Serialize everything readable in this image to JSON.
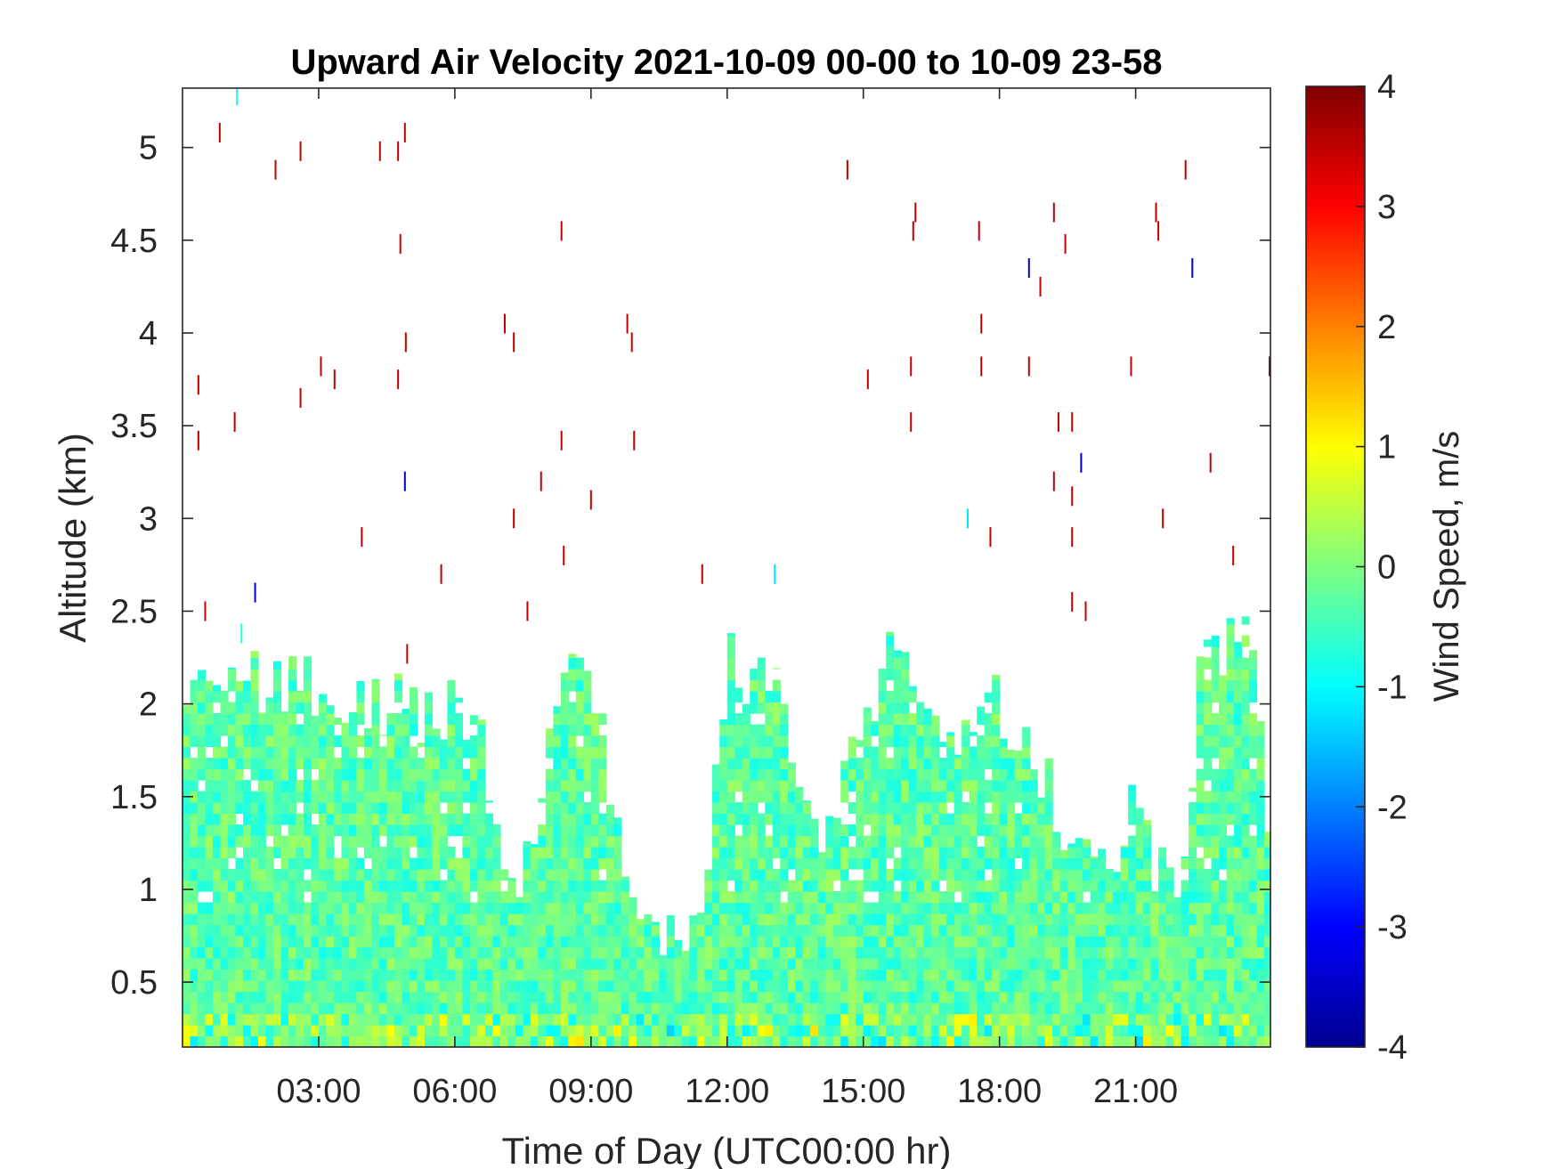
{
  "chart_data": {
    "type": "heatmap",
    "title": "Upward Air Velocity 2021-10-09 00-00 to 10-09 23-58",
    "xlabel": "Time of Day (UTC00:00 hr)",
    "ylabel": "Altitude (km)",
    "colorbar_label": "Wind Speed, m/s",
    "colormap": "jet",
    "xlim_hours": [
      0,
      23.97
    ],
    "ylim_km": [
      0.15,
      5.32
    ],
    "clim": [
      -4,
      4
    ],
    "x_ticks": [
      {
        "hour": 3,
        "label": "03:00"
      },
      {
        "hour": 6,
        "label": "06:00"
      },
      {
        "hour": 9,
        "label": "09:00"
      },
      {
        "hour": 12,
        "label": "12:00"
      },
      {
        "hour": 15,
        "label": "15:00"
      },
      {
        "hour": 18,
        "label": "18:00"
      },
      {
        "hour": 21,
        "label": "21:00"
      }
    ],
    "y_ticks": [
      {
        "km": 0.5,
        "label": "0.5"
      },
      {
        "km": 1,
        "label": "1"
      },
      {
        "km": 1.5,
        "label": "1.5"
      },
      {
        "km": 2,
        "label": "2"
      },
      {
        "km": 2.5,
        "label": "2.5"
      },
      {
        "km": 3,
        "label": "3"
      },
      {
        "km": 3.5,
        "label": "3.5"
      },
      {
        "km": 4,
        "label": "4"
      },
      {
        "km": 4.5,
        "label": "4.5"
      },
      {
        "km": 5,
        "label": "5"
      }
    ],
    "colorbar_ticks": [
      {
        "value": -4,
        "label": "-4"
      },
      {
        "value": -3,
        "label": "-3"
      },
      {
        "value": -2,
        "label": "-2"
      },
      {
        "value": -1,
        "label": "-1"
      },
      {
        "value": 0,
        "label": "0"
      },
      {
        "value": 1,
        "label": "1"
      },
      {
        "value": 2,
        "label": "2"
      },
      {
        "value": 3,
        "label": "3"
      },
      {
        "value": 4,
        "label": "4"
      }
    ],
    "data_ceiling_km": [
      [
        0.0,
        2.15
      ],
      [
        0.5,
        2.12
      ],
      [
        1.0,
        2.12
      ],
      [
        1.5,
        2.12
      ],
      [
        2.0,
        2.12
      ],
      [
        2.5,
        2.12
      ],
      [
        3.0,
        2.05
      ],
      [
        3.5,
        2.0
      ],
      [
        4.0,
        2.0
      ],
      [
        4.5,
        2.0
      ],
      [
        5.0,
        2.0
      ],
      [
        5.5,
        1.9
      ],
      [
        6.0,
        2.0
      ],
      [
        6.5,
        1.9
      ],
      [
        7.0,
        1.3
      ],
      [
        7.5,
        1.0
      ],
      [
        8.0,
        1.7
      ],
      [
        8.5,
        2.1
      ],
      [
        9.0,
        2.1
      ],
      [
        9.5,
        1.5
      ],
      [
        10.0,
        0.9
      ],
      [
        10.5,
        0.8
      ],
      [
        11.0,
        0.75
      ],
      [
        11.5,
        0.7
      ],
      [
        12.0,
        2.3
      ],
      [
        12.5,
        2.1
      ],
      [
        13.0,
        2.1
      ],
      [
        13.5,
        1.8
      ],
      [
        14.0,
        1.3
      ],
      [
        14.5,
        1.6
      ],
      [
        15.0,
        1.8
      ],
      [
        15.5,
        2.2
      ],
      [
        16.0,
        2.3
      ],
      [
        16.5,
        2.0
      ],
      [
        17.0,
        1.9
      ],
      [
        17.5,
        1.9
      ],
      [
        18.0,
        2.0
      ],
      [
        18.5,
        1.8
      ],
      [
        19.0,
        1.6
      ],
      [
        19.5,
        1.2
      ],
      [
        20.0,
        1.3
      ],
      [
        20.5,
        1.1
      ],
      [
        21.0,
        1.5
      ],
      [
        21.5,
        1.1
      ],
      [
        22.0,
        1.0
      ],
      [
        22.5,
        2.3
      ],
      [
        23.0,
        2.3
      ],
      [
        23.5,
        2.3
      ],
      [
        23.97,
        1.3
      ]
    ],
    "dominant_value_ms": -0.3,
    "isolated_returns": [
      {
        "hour": 0.35,
        "km": 3.72,
        "value": 3.5
      },
      {
        "hour": 0.35,
        "km": 3.42,
        "value": 3.5
      },
      {
        "hour": 0.5,
        "km": 2.5,
        "value": 3.5
      },
      {
        "hour": 0.82,
        "km": 5.08,
        "value": 3.5
      },
      {
        "hour": 1.15,
        "km": 3.52,
        "value": 3.5
      },
      {
        "hour": 1.2,
        "km": 5.28,
        "value": -0.8
      },
      {
        "hour": 1.6,
        "km": 2.6,
        "value": -3.5
      },
      {
        "hour": 1.3,
        "km": 2.38,
        "value": -0.8
      },
      {
        "hour": 2.05,
        "km": 4.88,
        "value": 3.5
      },
      {
        "hour": 2.6,
        "km": 4.98,
        "value": 3.5
      },
      {
        "hour": 2.6,
        "km": 3.65,
        "value": 3.5
      },
      {
        "hour": 3.05,
        "km": 3.82,
        "value": 3.5
      },
      {
        "hour": 3.35,
        "km": 3.75,
        "value": 3.5
      },
      {
        "hour": 3.95,
        "km": 2.9,
        "value": 3.5
      },
      {
        "hour": 4.35,
        "km": 4.98,
        "value": 3.5
      },
      {
        "hour": 4.75,
        "km": 4.98,
        "value": 3.5
      },
      {
        "hour": 4.75,
        "km": 3.75,
        "value": 3.5
      },
      {
        "hour": 4.8,
        "km": 4.48,
        "value": 3.5
      },
      {
        "hour": 4.9,
        "km": 5.08,
        "value": 3.5
      },
      {
        "hour": 4.92,
        "km": 3.95,
        "value": 3.5
      },
      {
        "hour": 4.9,
        "km": 3.2,
        "value": -3.5
      },
      {
        "hour": 4.95,
        "km": 2.27,
        "value": 3.5
      },
      {
        "hour": 5.7,
        "km": 2.7,
        "value": 3.5
      },
      {
        "hour": 7.1,
        "km": 4.05,
        "value": 3.5
      },
      {
        "hour": 7.3,
        "km": 3.95,
        "value": 3.5
      },
      {
        "hour": 7.3,
        "km": 3.0,
        "value": 3.5
      },
      {
        "hour": 7.6,
        "km": 2.5,
        "value": 3.5
      },
      {
        "hour": 7.9,
        "km": 3.2,
        "value": 3.5
      },
      {
        "hour": 8.35,
        "km": 4.55,
        "value": 3.5
      },
      {
        "hour": 8.35,
        "km": 3.42,
        "value": 3.5
      },
      {
        "hour": 8.4,
        "km": 2.8,
        "value": 3.5
      },
      {
        "hour": 9.0,
        "km": 3.1,
        "value": 3.5
      },
      {
        "hour": 9.8,
        "km": 4.05,
        "value": 3.5
      },
      {
        "hour": 9.9,
        "km": 3.95,
        "value": 3.5
      },
      {
        "hour": 9.95,
        "km": 3.42,
        "value": 3.5
      },
      {
        "hour": 11.45,
        "km": 2.7,
        "value": 3.5
      },
      {
        "hour": 13.05,
        "km": 2.7,
        "value": -1.2
      },
      {
        "hour": 14.65,
        "km": 4.88,
        "value": 3.5
      },
      {
        "hour": 15.1,
        "km": 3.75,
        "value": 3.5
      },
      {
        "hour": 16.05,
        "km": 3.82,
        "value": 3.5
      },
      {
        "hour": 16.05,
        "km": 3.52,
        "value": 3.5
      },
      {
        "hour": 16.1,
        "km": 4.55,
        "value": 3.5
      },
      {
        "hour": 16.15,
        "km": 4.65,
        "value": 3.5
      },
      {
        "hour": 17.55,
        "km": 4.55,
        "value": 3.5
      },
      {
        "hour": 17.6,
        "km": 4.05,
        "value": 3.5
      },
      {
        "hour": 17.6,
        "km": 3.82,
        "value": 3.5
      },
      {
        "hour": 17.8,
        "km": 2.9,
        "value": 3.5
      },
      {
        "hour": 17.3,
        "km": 3.0,
        "value": -1.2
      },
      {
        "hour": 18.65,
        "km": 4.35,
        "value": -3.5
      },
      {
        "hour": 18.65,
        "km": 3.82,
        "value": 3.5
      },
      {
        "hour": 18.9,
        "km": 4.25,
        "value": 3.5
      },
      {
        "hour": 19.2,
        "km": 4.65,
        "value": 3.5
      },
      {
        "hour": 19.3,
        "km": 3.52,
        "value": 3.5
      },
      {
        "hour": 19.2,
        "km": 3.2,
        "value": 3.5
      },
      {
        "hour": 19.45,
        "km": 4.48,
        "value": 3.5
      },
      {
        "hour": 19.6,
        "km": 3.52,
        "value": 3.5
      },
      {
        "hour": 19.6,
        "km": 3.12,
        "value": 3.5
      },
      {
        "hour": 19.6,
        "km": 2.9,
        "value": 3.5
      },
      {
        "hour": 19.8,
        "km": 3.3,
        "value": -3.5
      },
      {
        "hour": 19.6,
        "km": 2.55,
        "value": 3.5
      },
      {
        "hour": 19.9,
        "km": 2.5,
        "value": 3.5
      },
      {
        "hour": 20.9,
        "km": 3.82,
        "value": 3.5
      },
      {
        "hour": 21.45,
        "km": 4.65,
        "value": 3.5
      },
      {
        "hour": 21.5,
        "km": 4.55,
        "value": 3.5
      },
      {
        "hour": 21.6,
        "km": 3.0,
        "value": 3.5
      },
      {
        "hour": 22.1,
        "km": 4.88,
        "value": 3.5
      },
      {
        "hour": 22.25,
        "km": 4.35,
        "value": -3.5
      },
      {
        "hour": 22.65,
        "km": 3.3,
        "value": 3.5
      },
      {
        "hour": 23.15,
        "km": 2.8,
        "value": 3.5
      },
      {
        "hour": 23.95,
        "km": 3.82,
        "value": 3.5
      }
    ]
  }
}
